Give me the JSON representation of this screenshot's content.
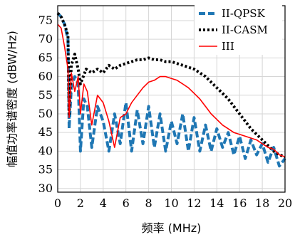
{
  "chart_data": {
    "type": "line",
    "xlabel": "频率 (MHz)",
    "ylabel": "幅值功率谱密度 (dBW/Hz)",
    "xlim": [
      0,
      20
    ],
    "ylim": [
      29,
      79
    ],
    "xticks": [
      0,
      2,
      4,
      6,
      8,
      10,
      12,
      14,
      16,
      18,
      20
    ],
    "yticks": [
      30,
      35,
      40,
      45,
      50,
      55,
      60,
      65,
      70,
      75
    ],
    "grid": true,
    "legend_position": "top-right",
    "series": [
      {
        "name": "II-QPSK",
        "color": "#1f77b4",
        "style": "dashed",
        "x": [
          0,
          0.3,
          0.6,
          0.9,
          1.0,
          1.2,
          1.5,
          1.8,
          2.0,
          2.3,
          2.6,
          3.0,
          3.5,
          4.0,
          4.5,
          5.0,
          5.5,
          6.0,
          6.5,
          7.0,
          7.5,
          8.0,
          8.5,
          9.0,
          9.5,
          10.0,
          10.5,
          11.0,
          11.5,
          12.0,
          12.5,
          13.0,
          13.5,
          14.0,
          14.5,
          15.0,
          15.5,
          16.0,
          16.5,
          17.0,
          17.5,
          18.0,
          18.5,
          19.0,
          19.5,
          20.0
        ],
        "y": [
          77,
          76,
          74,
          70,
          46,
          57,
          60,
          58,
          40,
          54,
          52,
          41,
          52,
          48,
          40,
          50,
          42,
          53,
          40,
          51,
          42,
          52,
          41,
          50,
          40,
          48,
          42,
          50,
          40,
          49,
          40,
          47,
          40,
          46,
          41,
          45,
          39,
          44,
          38,
          43,
          39,
          42,
          37,
          41,
          36,
          38
        ]
      },
      {
        "name": "II-CASM",
        "color": "#000000",
        "style": "dotted",
        "x": [
          0,
          0.3,
          0.6,
          0.9,
          1.0,
          1.2,
          1.5,
          1.8,
          2.0,
          2.5,
          3.0,
          3.5,
          4.0,
          4.5,
          5.0,
          5.5,
          6.0,
          6.5,
          7.0,
          7.5,
          8.0,
          8.5,
          9.0,
          9.5,
          10.0,
          10.5,
          11.0,
          11.5,
          12.0,
          12.5,
          13.0,
          13.5,
          14.0,
          14.5,
          15.0,
          15.5,
          16.0,
          16.5,
          17.0,
          17.5,
          18.0,
          18.5,
          19.0,
          19.5,
          20.0
        ],
        "y": [
          77,
          76,
          74,
          71,
          50,
          63,
          66,
          62,
          58,
          62,
          61,
          62,
          61,
          63,
          62,
          63,
          63.5,
          64,
          64.5,
          64.5,
          65,
          64.5,
          64.5,
          64,
          64,
          63.5,
          63,
          62.5,
          62,
          61,
          60,
          58.5,
          57,
          55.5,
          54,
          52,
          50,
          48,
          46,
          44.5,
          43,
          41.5,
          40,
          39,
          38.5
        ]
      },
      {
        "name": "III",
        "color": "#ff0000",
        "style": "solid",
        "x": [
          0,
          0.3,
          0.6,
          0.9,
          1.0,
          1.2,
          1.5,
          1.8,
          2.0,
          2.3,
          2.6,
          3.0,
          3.5,
          4.0,
          4.5,
          5.0,
          5.5,
          6.0,
          6.5,
          7.0,
          7.5,
          8.0,
          8.5,
          9.0,
          9.5,
          10.0,
          10.5,
          11.0,
          11.5,
          12.0,
          12.5,
          13.0,
          13.5,
          14.0,
          14.5,
          15.0,
          15.5,
          16.0,
          16.5,
          17.0,
          17.5,
          18.0,
          18.5,
          19.0,
          19.5,
          20.0
        ],
        "y": [
          74,
          73,
          68,
          62,
          49,
          61,
          56,
          60,
          50,
          58,
          56,
          47,
          55,
          53,
          48,
          41,
          49,
          50,
          53,
          55,
          57,
          58.5,
          59,
          60,
          60,
          59.5,
          59,
          58,
          57,
          55.5,
          54,
          52,
          50,
          48.5,
          47,
          46,
          45,
          44.5,
          44,
          43.5,
          43,
          42,
          41,
          40.5,
          39,
          38.5
        ]
      }
    ]
  }
}
